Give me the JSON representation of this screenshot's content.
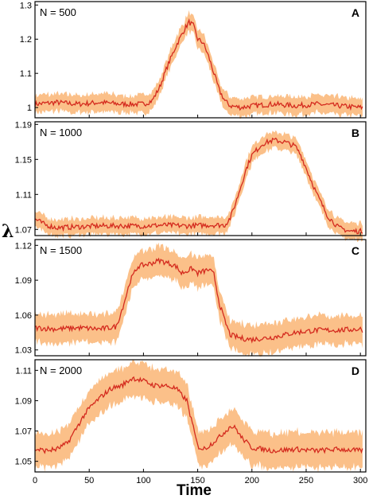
{
  "figure": {
    "ylabel": "λ",
    "xlabel": "Time",
    "x_ticks": [
      0,
      50,
      100,
      150,
      200,
      250,
      300
    ],
    "xlim": [
      0,
      305
    ],
    "colors": {
      "line": "#d42a1e",
      "band": "#fbc089",
      "frame": "#000000"
    }
  },
  "chart_data": [
    {
      "type": "line",
      "panel": "A",
      "label": "N = 500",
      "ylim": [
        0.97,
        1.31
      ],
      "y_ticks": [
        1,
        1.1,
        1.2,
        1.3
      ],
      "y_tick_labels": [
        "1",
        "1.1",
        "1.2",
        "1.3"
      ],
      "series": [
        {
          "x": [
            0,
            20,
            40,
            60,
            80,
            100,
            108,
            115,
            122,
            130,
            138,
            142,
            146,
            150,
            155,
            160,
            165,
            170,
            175,
            180,
            190,
            200,
            220,
            240,
            260,
            280,
            300,
            305
          ],
          "y": [
            1.01,
            1.015,
            1.01,
            1.015,
            1.01,
            1.01,
            1.02,
            1.06,
            1.12,
            1.18,
            1.23,
            1.25,
            1.24,
            1.2,
            1.19,
            1.15,
            1.1,
            1.05,
            1.02,
            1.005,
            1.0,
            1.005,
            1.01,
            1.005,
            1.01,
            1.005,
            1.0,
            1.0
          ],
          "band": 0.025
        }
      ]
    },
    {
      "type": "line",
      "panel": "B",
      "label": "N = 1000",
      "ylim": [
        1.063,
        1.193
      ],
      "y_ticks": [
        1.07,
        1.11,
        1.15,
        1.19
      ],
      "y_tick_labels": [
        "1.07",
        "1.11",
        "1.15",
        "1.19"
      ],
      "series": [
        {
          "x": [
            0,
            10,
            20,
            40,
            60,
            80,
            100,
            120,
            140,
            160,
            175,
            180,
            185,
            190,
            195,
            200,
            210,
            220,
            230,
            240,
            245,
            250,
            260,
            270,
            280,
            290,
            300,
            305
          ],
          "y": [
            1.082,
            1.075,
            1.072,
            1.073,
            1.074,
            1.074,
            1.074,
            1.075,
            1.074,
            1.075,
            1.075,
            1.083,
            1.1,
            1.12,
            1.14,
            1.155,
            1.168,
            1.172,
            1.17,
            1.165,
            1.155,
            1.14,
            1.11,
            1.085,
            1.072,
            1.068,
            1.068,
            1.069
          ],
          "band": 0.009
        }
      ]
    },
    {
      "type": "line",
      "panel": "C",
      "label": "N = 1500",
      "ylim": [
        1.025,
        1.125
      ],
      "y_ticks": [
        1.03,
        1.06,
        1.09,
        1.12
      ],
      "y_tick_labels": [
        "1.03",
        "1.06",
        "1.09",
        "1.12"
      ],
      "series": [
        {
          "x": [
            0,
            20,
            40,
            60,
            75,
            82,
            88,
            95,
            105,
            115,
            125,
            130,
            135,
            140,
            145,
            150,
            160,
            165,
            170,
            175,
            180,
            190,
            200,
            220,
            240,
            260,
            280,
            300,
            305
          ],
          "y": [
            1.049,
            1.048,
            1.049,
            1.048,
            1.05,
            1.07,
            1.09,
            1.102,
            1.104,
            1.107,
            1.104,
            1.102,
            1.096,
            1.098,
            1.1,
            1.096,
            1.099,
            1.095,
            1.07,
            1.055,
            1.043,
            1.04,
            1.039,
            1.041,
            1.045,
            1.047,
            1.047,
            1.048,
            1.046
          ],
          "band": 0.012
        }
      ]
    },
    {
      "type": "line",
      "panel": "D",
      "label": "N = 2000",
      "ylim": [
        1.043,
        1.117
      ],
      "y_ticks": [
        1.05,
        1.07,
        1.09,
        1.11
      ],
      "y_tick_labels": [
        "1.05",
        "1.07",
        "1.09",
        "1.11"
      ],
      "series": [
        {
          "x": [
            0,
            10,
            20,
            30,
            40,
            45,
            50,
            60,
            70,
            80,
            90,
            100,
            110,
            120,
            130,
            140,
            145,
            150,
            155,
            160,
            170,
            180,
            185,
            190,
            200,
            220,
            240,
            260,
            280,
            300,
            305
          ],
          "y": [
            1.058,
            1.057,
            1.058,
            1.062,
            1.074,
            1.08,
            1.085,
            1.092,
            1.098,
            1.1,
            1.105,
            1.103,
            1.1,
            1.1,
            1.098,
            1.09,
            1.075,
            1.06,
            1.058,
            1.06,
            1.066,
            1.073,
            1.072,
            1.066,
            1.059,
            1.057,
            1.058,
            1.057,
            1.058,
            1.057,
            1.058
          ],
          "band": 0.011
        }
      ]
    }
  ]
}
